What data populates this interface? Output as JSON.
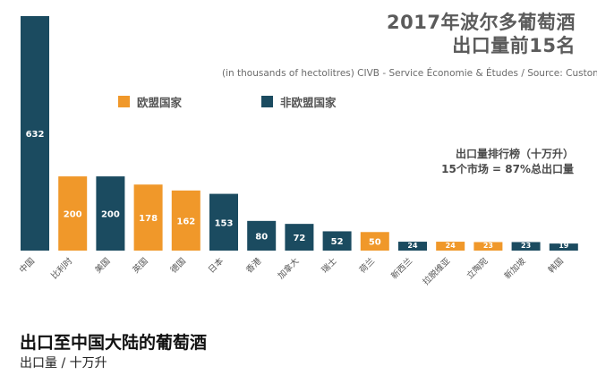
{
  "header": {
    "title_line1": "2017年波尔多葡萄酒",
    "title_line2": "出口量前15名",
    "subtitle": "(in thousands of hectolitres)  CIVB - Service Économie & Études / Source: Customs"
  },
  "legend": {
    "eu_label": "欧盟国家",
    "non_eu_label": "非欧盟国家"
  },
  "note": {
    "line1": "出口量排行榜（十万升）",
    "line2": "15个市场 = 87%总出口量"
  },
  "caption": {
    "title": "出口至中国大陆的葡萄酒",
    "subtitle": "出口量 / 十万升"
  },
  "colors": {
    "eu": "#f0982a",
    "non_eu": "#1b4b60",
    "label_text": "#ffffff",
    "tick_text": "#555555"
  },
  "chart_data": {
    "type": "bar",
    "title": "2017年波尔多葡萄酒出口量前15名",
    "ylabel": "",
    "xlabel": "",
    "ylim": [
      0,
      632
    ],
    "grid": false,
    "legend_position": "top",
    "categories": [
      "中国",
      "比利时",
      "美国",
      "英国",
      "德国",
      "日本",
      "香港",
      "加拿大",
      "瑞士",
      "荷兰",
      "新西兰",
      "拉脱维亚",
      "立陶宛",
      "新加坡",
      "韩国"
    ],
    "values": [
      632,
      200,
      200,
      178,
      162,
      153,
      80,
      72,
      52,
      50,
      24,
      24,
      23,
      23,
      19
    ],
    "groups": [
      "non_eu",
      "eu",
      "non_eu",
      "eu",
      "eu",
      "non_eu",
      "non_eu",
      "non_eu",
      "non_eu",
      "eu",
      "non_eu",
      "eu",
      "eu",
      "non_eu",
      "non_eu"
    ],
    "series": [
      {
        "name": "欧盟国家"
      },
      {
        "name": "非欧盟国家"
      }
    ]
  }
}
